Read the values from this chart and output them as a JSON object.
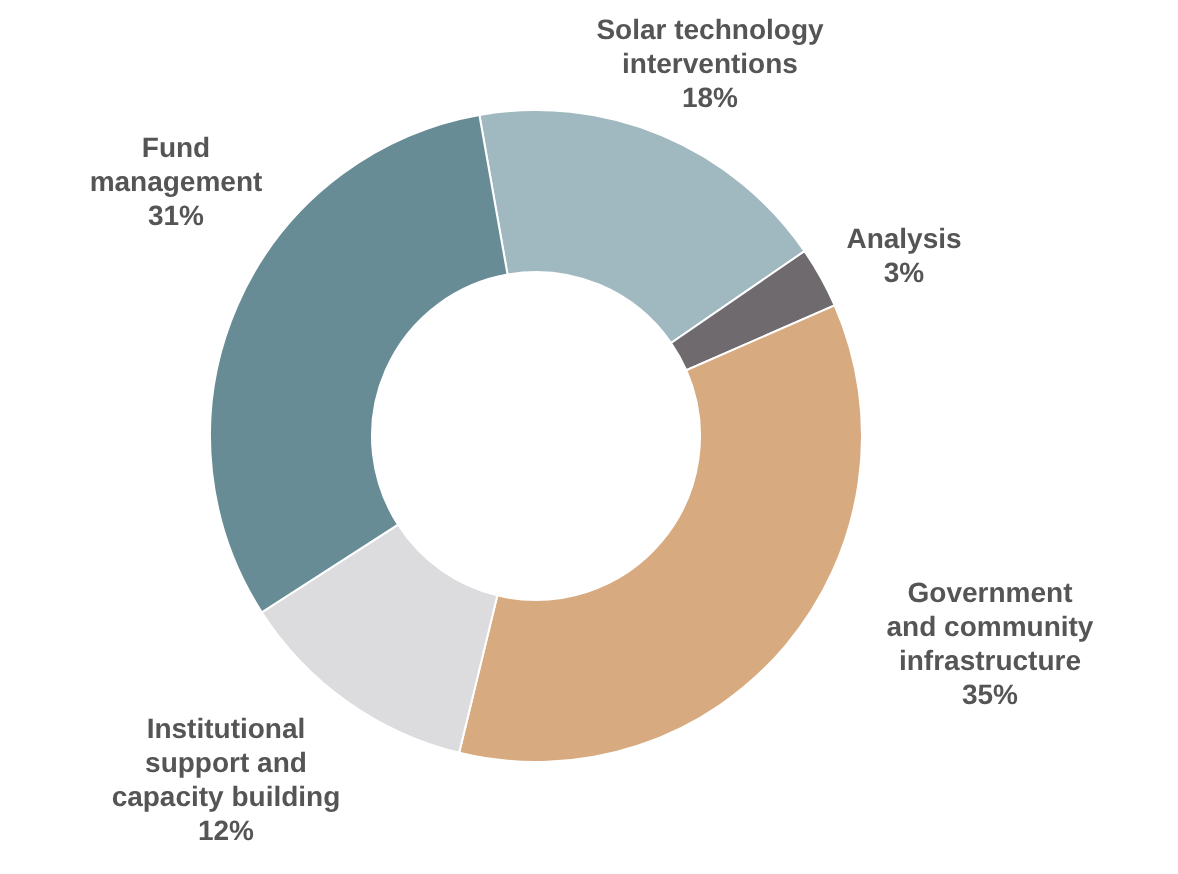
{
  "chart_data": {
    "type": "donut",
    "categories": [
      "Solar technology\ninterventions",
      "Analysis",
      "Government\nand community\ninfrastructure",
      "Institutional\nsupport and\ncapacity building",
      "Fund\nmanagement"
    ],
    "values": [
      18,
      3,
      35,
      12,
      31
    ],
    "value_labels": [
      "18%",
      "3%",
      "35%",
      "12%",
      "31%"
    ],
    "colors": [
      "#a0b8bf",
      "#6e6a6e",
      "#d7aa80",
      "#dcdcde",
      "#688c96"
    ]
  }
}
